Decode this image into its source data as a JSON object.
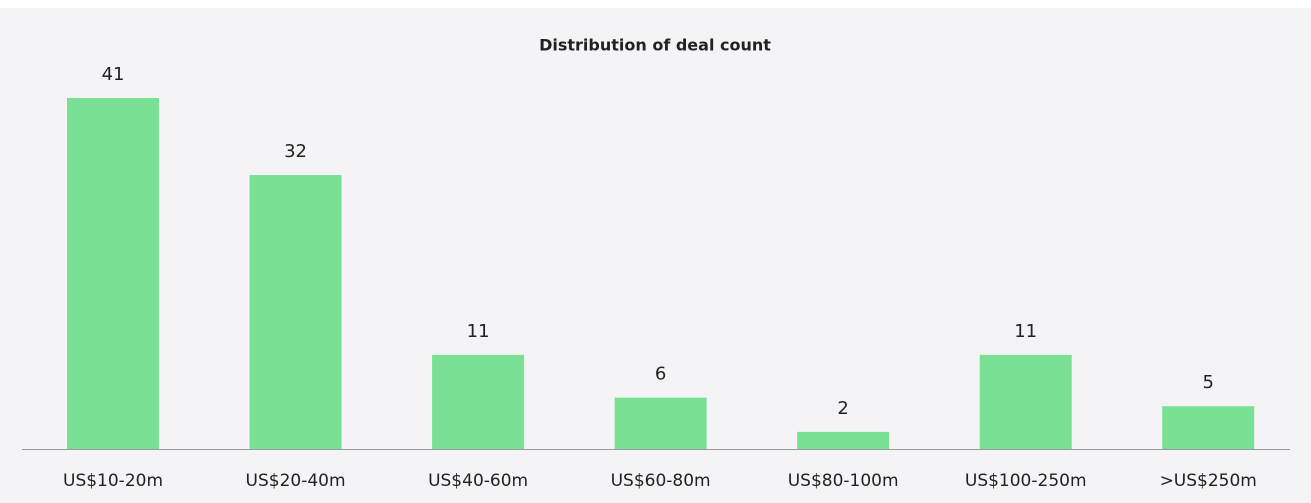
{
  "chart_data": {
    "type": "bar",
    "title": "Distribution of deal count",
    "categories": [
      "US$10-20m",
      "US$20-40m",
      "US$40-60m",
      "US$60-80m",
      "US$80-100m",
      "US$100-250m",
      ">US$250m"
    ],
    "values": [
      41,
      32,
      11,
      6,
      2,
      11,
      5
    ],
    "color": "#7ae095"
  }
}
